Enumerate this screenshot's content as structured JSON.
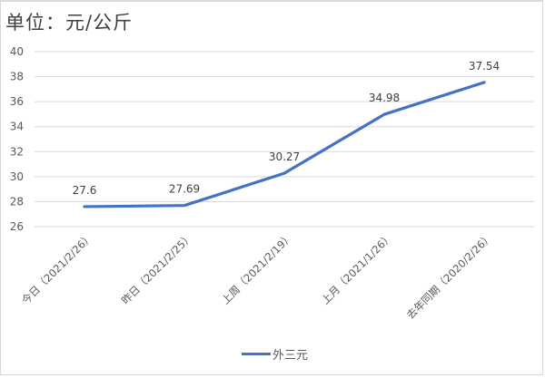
{
  "chart_data": {
    "type": "line",
    "title": "单位：元/公斤",
    "categories": [
      "今日（2021/2/26）",
      "昨日（2021/2/25）",
      "上周（2021/2/19）",
      "上月（2021/1/26）",
      "去年同期（2020/2/26）"
    ],
    "series": [
      {
        "name": "外三元",
        "values": [
          27.6,
          27.69,
          30.27,
          34.98,
          37.54
        ],
        "color": "#4472c4"
      }
    ],
    "data_labels": [
      "27.6",
      "27.69",
      "30.27",
      "34.98",
      "37.54"
    ],
    "xlabel": "",
    "ylabel": "",
    "ylim": [
      26,
      40
    ],
    "yticks": [
      "40",
      "38",
      "36",
      "34",
      "32",
      "30",
      "28",
      "26"
    ],
    "grid": true,
    "legend_position": "bottom"
  },
  "legend": {
    "label": "外三元"
  }
}
